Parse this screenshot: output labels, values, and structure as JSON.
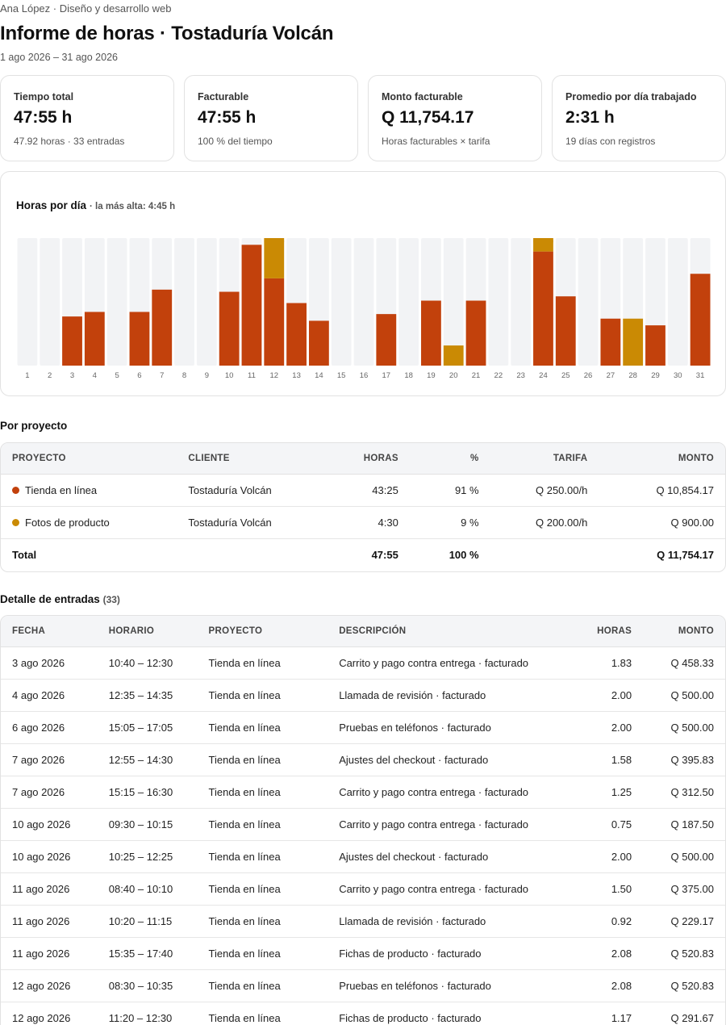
{
  "header": {
    "meta": "Ana López · Diseño y desarrollo web",
    "title": "Informe de horas · Tostaduría Volcán",
    "range": "1 ago 2026 – 31 ago 2026"
  },
  "cards": [
    {
      "label": "Tiempo total",
      "value": "47:55 h",
      "sub": "47.92 horas · 33 entradas"
    },
    {
      "label": "Facturable",
      "value": "47:55 h",
      "sub": "100 % del tiempo"
    },
    {
      "label": "Monto facturable",
      "value": "Q 11,754.17",
      "sub": "Horas facturables × tarifa"
    },
    {
      "label": "Promedio por día trabajado",
      "value": "2:31 h",
      "sub": "19 días con registros"
    }
  ],
  "chart": {
    "title": "Horas por día",
    "peak": "· la más alta: 4:45 h"
  },
  "chart_data": {
    "type": "bar",
    "stacked": true,
    "categories": [
      "1",
      "2",
      "3",
      "4",
      "5",
      "6",
      "7",
      "8",
      "9",
      "10",
      "11",
      "12",
      "13",
      "14",
      "15",
      "16",
      "17",
      "18",
      "19",
      "20",
      "21",
      "22",
      "23",
      "24",
      "25",
      "26",
      "27",
      "28",
      "29",
      "30",
      "31"
    ],
    "ylim": [
      0,
      4.75
    ],
    "colors": {
      "Tienda en línea": "#c2410c",
      "Fotos de producto": "#ca8a04",
      "track": "#f2f3f5"
    },
    "series": [
      {
        "name": "Tienda en línea",
        "values": [
          0,
          0,
          1.83,
          2.0,
          0,
          2.0,
          2.83,
          0,
          0,
          2.75,
          4.5,
          3.25,
          2.33,
          1.67,
          0,
          0,
          1.92,
          0,
          2.42,
          0,
          2.42,
          0,
          0,
          4.25,
          2.58,
          0,
          1.75,
          0,
          1.5,
          0,
          3.42
        ]
      },
      {
        "name": "Fotos de producto",
        "values": [
          0,
          0,
          0,
          0,
          0,
          0,
          0,
          0,
          0,
          0,
          0,
          1.5,
          0,
          0,
          0,
          0,
          0,
          0,
          0,
          0.75,
          0,
          0,
          0,
          0.5,
          0,
          0,
          0,
          1.75,
          0,
          0,
          0
        ]
      }
    ]
  },
  "projects": {
    "title": "Por proyecto",
    "headers": [
      "PROYECTO",
      "CLIENTE",
      "HORAS",
      "%",
      "TARIFA",
      "MONTO"
    ],
    "rows": [
      {
        "color": "#c2410c",
        "project": "Tienda en línea",
        "client": "Tostaduría Volcán",
        "hours": "43:25",
        "pct": "91 %",
        "rate": "Q 250.00/h",
        "amount": "Q 10,854.17"
      },
      {
        "color": "#ca8a04",
        "project": "Fotos de producto",
        "client": "Tostaduría Volcán",
        "hours": "4:30",
        "pct": "9 %",
        "rate": "Q 200.00/h",
        "amount": "Q 900.00"
      }
    ],
    "total": {
      "label": "Total",
      "hours": "47:55",
      "pct": "100 %",
      "amount": "Q 11,754.17"
    }
  },
  "entries": {
    "title": "Detalle de entradas",
    "count": "(33)",
    "headers": [
      "FECHA",
      "HORARIO",
      "PROYECTO",
      "DESCRIPCIÓN",
      "HORAS",
      "MONTO"
    ],
    "rows": [
      {
        "date": "3 ago 2026",
        "time": "10:40 – 12:30",
        "project": "Tienda en línea",
        "desc": "Carrito y pago contra entrega · facturado",
        "hours": "1.83",
        "amount": "Q 458.33"
      },
      {
        "date": "4 ago 2026",
        "time": "12:35 – 14:35",
        "project": "Tienda en línea",
        "desc": "Llamada de revisión · facturado",
        "hours": "2.00",
        "amount": "Q 500.00"
      },
      {
        "date": "6 ago 2026",
        "time": "15:05 – 17:05",
        "project": "Tienda en línea",
        "desc": "Pruebas en teléfonos · facturado",
        "hours": "2.00",
        "amount": "Q 500.00"
      },
      {
        "date": "7 ago 2026",
        "time": "12:55 – 14:30",
        "project": "Tienda en línea",
        "desc": "Ajustes del checkout · facturado",
        "hours": "1.58",
        "amount": "Q 395.83"
      },
      {
        "date": "7 ago 2026",
        "time": "15:15 – 16:30",
        "project": "Tienda en línea",
        "desc": "Carrito y pago contra entrega · facturado",
        "hours": "1.25",
        "amount": "Q 312.50"
      },
      {
        "date": "10 ago 2026",
        "time": "09:30 – 10:15",
        "project": "Tienda en línea",
        "desc": "Carrito y pago contra entrega · facturado",
        "hours": "0.75",
        "amount": "Q 187.50"
      },
      {
        "date": "10 ago 2026",
        "time": "10:25 – 12:25",
        "project": "Tienda en línea",
        "desc": "Ajustes del checkout · facturado",
        "hours": "2.00",
        "amount": "Q 500.00"
      },
      {
        "date": "11 ago 2026",
        "time": "08:40 – 10:10",
        "project": "Tienda en línea",
        "desc": "Carrito y pago contra entrega · facturado",
        "hours": "1.50",
        "amount": "Q 375.00"
      },
      {
        "date": "11 ago 2026",
        "time": "10:20 – 11:15",
        "project": "Tienda en línea",
        "desc": "Llamada de revisión · facturado",
        "hours": "0.92",
        "amount": "Q 229.17"
      },
      {
        "date": "11 ago 2026",
        "time": "15:35 – 17:40",
        "project": "Tienda en línea",
        "desc": "Fichas de producto · facturado",
        "hours": "2.08",
        "amount": "Q 520.83"
      },
      {
        "date": "12 ago 2026",
        "time": "08:30 – 10:35",
        "project": "Tienda en línea",
        "desc": "Pruebas en teléfonos · facturado",
        "hours": "2.08",
        "amount": "Q 520.83"
      },
      {
        "date": "12 ago 2026",
        "time": "11:20 – 12:30",
        "project": "Tienda en línea",
        "desc": "Fichas de producto · facturado",
        "hours": "1.17",
        "amount": "Q 291.67"
      }
    ]
  }
}
